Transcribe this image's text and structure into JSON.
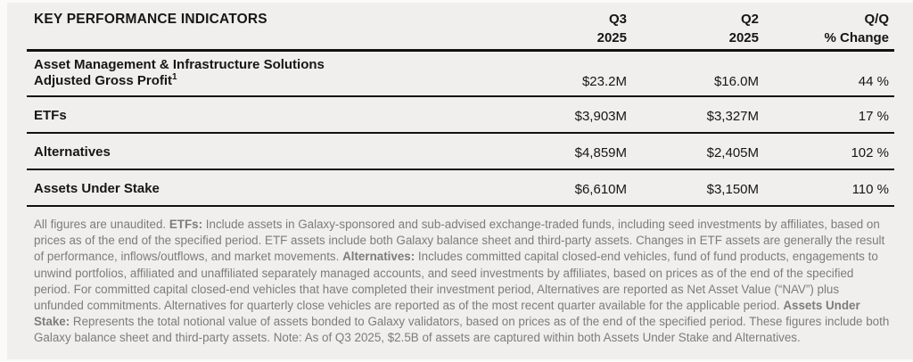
{
  "page": {
    "background": "#f0efed",
    "edge_background": "#fafaf8",
    "text_color": "#161616",
    "rule_color": "#111111",
    "footnote_color": "#7c7c7c"
  },
  "table": {
    "title": "KEY PERFORMANCE INDICATORS",
    "columns": [
      {
        "line1": "Q3",
        "line2": "2025"
      },
      {
        "line1": "Q2",
        "line2": "2025"
      },
      {
        "line1": "Q/Q",
        "line2": "% Change"
      }
    ],
    "rows": [
      {
        "label_line1": "Asset Management & Infrastructure Solutions",
        "label_line2": "Adjusted Gross Profit",
        "label_sup": "1",
        "q3": "$23.2M",
        "q2": "$16.0M",
        "qq": "44 %"
      },
      {
        "label_line1": "ETFs",
        "q3": "$3,903M",
        "q2": "$3,327M",
        "qq": "17 %"
      },
      {
        "label_line1": "Alternatives",
        "q3": "$4,859M",
        "q2": "$2,405M",
        "qq": "102 %"
      },
      {
        "label_line1": "Assets Under Stake",
        "q3": "$6,610M",
        "q2": "$3,150M",
        "qq": "110 %"
      }
    ]
  },
  "footnote": {
    "segments": [
      {
        "text": "All figures are unaudited. ",
        "bold": false
      },
      {
        "text": "ETFs:",
        "bold": true
      },
      {
        "text": " Include assets in Galaxy-sponsored and sub-advised exchange-traded funds, including seed investments by affiliates, based on prices as of the end of the specified period. ETF assets include both Galaxy balance sheet and third-party assets. Changes in ETF assets are generally the result of performance, inflows/outflows, and market movements. ",
        "bold": false
      },
      {
        "text": "Alternatives:",
        "bold": true
      },
      {
        "text": " Includes committed capital closed-end vehicles, fund of fund products, engagements to unwind portfolios, affiliated and unaffiliated separately managed accounts, and seed investments by affiliates, based on prices as of the end of the specified period. For committed capital closed-end vehicles that have completed their investment period, Alternatives are reported as Net Asset Value (“NAV”) plus unfunded commitments. Alternatives for quarterly close vehicles are reported as of the most recent quarter available for the applicable period. ",
        "bold": false
      },
      {
        "text": "Assets Under Stake:",
        "bold": true
      },
      {
        "text": " Represents the total notional value of assets bonded to Galaxy validators, based on prices as of the end of the specified period. These figures include both Galaxy balance sheet and third-party assets. Note: As of Q3 2025, $2.5B of assets are captured within both Assets Under Stake and Alternatives.",
        "bold": false
      }
    ]
  }
}
